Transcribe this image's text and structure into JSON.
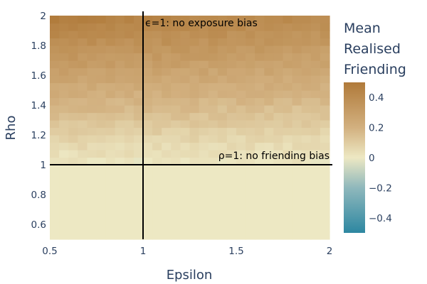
{
  "chart_data": {
    "type": "heatmap",
    "title": "",
    "xlabel": "Epsilon",
    "ylabel": "Rho",
    "xlim": [
      0.5,
      2.0
    ],
    "ylim": [
      0.5,
      2.0
    ],
    "x_ticks": [
      "0.5",
      "1",
      "1.5",
      "2"
    ],
    "y_ticks": [
      "0.6",
      "0.8",
      "1",
      "1.2",
      "1.4",
      "1.6",
      "1.8",
      "2"
    ],
    "value_model": {
      "description": "Mean realised friending approx 0 for rho<=1; rises with rho above 1 (about 0.4-0.5 at rho=2), slightly higher for small epsilon",
      "below_rho_1_value": 0.0,
      "value_at_rho_2_eps_0_5": 0.48,
      "value_at_rho_2_eps_2": 0.4
    },
    "colorbar": {
      "title": [
        "Mean",
        "Realised",
        "Friending"
      ],
      "range": [
        -0.5,
        0.5
      ],
      "ticks": [
        "0.4",
        "0.2",
        "0",
        "−0.2",
        "−0.4"
      ],
      "tick_values": [
        0.4,
        0.2,
        0.0,
        -0.2,
        -0.4
      ],
      "colors": [
        "#b07a3a",
        "#d2b07f",
        "#ede8c3",
        "#8fb8bc",
        "#2d87a1"
      ]
    },
    "reference_lines": [
      {
        "axis": "x",
        "value": 1,
        "label": "ϵ=1: no exposure bias"
      },
      {
        "axis": "y",
        "value": 1,
        "label": "ρ=1: no friending bias"
      }
    ]
  }
}
